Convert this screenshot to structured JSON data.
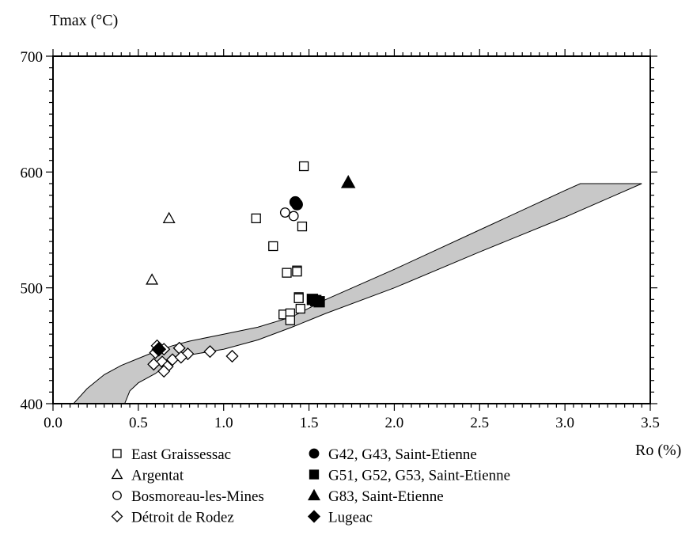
{
  "chart_data": {
    "type": "scatter",
    "title": "",
    "xlabel": "Ro (%)",
    "ylabel": "Tmax (°C)",
    "xlim": [
      0.0,
      3.5
    ],
    "ylim": [
      400,
      700
    ],
    "x_ticks": [
      0.0,
      0.5,
      1.0,
      1.5,
      2.0,
      2.5,
      3.0,
      3.5
    ],
    "x_tick_labels": [
      "0.0",
      "0.5",
      "1.0",
      "1.5",
      "2.0",
      "2.5",
      "3.0",
      "3.5"
    ],
    "y_ticks": [
      400,
      500,
      600,
      700
    ],
    "y_tick_labels": [
      "400",
      "500",
      "600",
      "700"
    ],
    "grid": false,
    "legend_position": "bottom",
    "band": {
      "fill": "#c8c8c8",
      "upper": [
        [
          0.12,
          400
        ],
        [
          0.2,
          413
        ],
        [
          0.3,
          425
        ],
        [
          0.4,
          433
        ],
        [
          0.5,
          439
        ],
        [
          0.6,
          445
        ],
        [
          0.7,
          450
        ],
        [
          0.8,
          454
        ],
        [
          1.0,
          460
        ],
        [
          1.2,
          466
        ],
        [
          1.4,
          475
        ],
        [
          1.6,
          490
        ],
        [
          2.0,
          516
        ],
        [
          2.5,
          550
        ],
        [
          3.0,
          584
        ],
        [
          3.09,
          590
        ],
        [
          3.45,
          590
        ]
      ],
      "lower": [
        [
          3.45,
          590
        ],
        [
          3.0,
          561
        ],
        [
          2.5,
          531
        ],
        [
          2.0,
          500
        ],
        [
          1.6,
          478
        ],
        [
          1.5,
          472
        ],
        [
          1.4,
          466
        ],
        [
          1.2,
          455
        ],
        [
          1.0,
          447
        ],
        [
          0.8,
          442
        ],
        [
          0.7,
          437
        ],
        [
          0.6,
          426
        ],
        [
          0.5,
          418
        ],
        [
          0.45,
          411
        ],
        [
          0.42,
          400
        ]
      ]
    },
    "series": [
      {
        "name": "East Graissessac",
        "marker": "square",
        "filled": false,
        "points": [
          [
            1.47,
            605
          ],
          [
            1.19,
            560
          ],
          [
            1.46,
            553
          ],
          [
            1.29,
            536
          ],
          [
            1.43,
            515
          ],
          [
            1.43,
            514
          ],
          [
            1.37,
            513
          ],
          [
            1.44,
            492
          ],
          [
            1.44,
            491
          ],
          [
            1.45,
            482
          ],
          [
            1.35,
            477
          ],
          [
            1.39,
            478
          ],
          [
            1.39,
            472
          ]
        ]
      },
      {
        "name": "Argentat",
        "marker": "triangle",
        "filled": false,
        "points": [
          [
            0.68,
            560
          ],
          [
            0.58,
            507
          ]
        ]
      },
      {
        "name": "Bosmoreau-les-Mines",
        "marker": "circle",
        "filled": false,
        "points": [
          [
            1.36,
            565
          ],
          [
            1.41,
            562
          ]
        ]
      },
      {
        "name": "Détroit de Rodez",
        "marker": "diamond",
        "filled": false,
        "points": [
          [
            0.61,
            450
          ],
          [
            0.65,
            447
          ],
          [
            0.74,
            448
          ],
          [
            0.6,
            444
          ],
          [
            0.92,
            445
          ],
          [
            1.05,
            441
          ],
          [
            0.79,
            443
          ],
          [
            0.7,
            438
          ],
          [
            0.75,
            440
          ],
          [
            0.64,
            436
          ],
          [
            0.59,
            434
          ],
          [
            0.67,
            432
          ],
          [
            0.65,
            428
          ]
        ]
      },
      {
        "name": "G42, G43, Saint-Etienne",
        "marker": "circle",
        "filled": true,
        "points": [
          [
            1.42,
            574
          ],
          [
            1.43,
            572
          ]
        ]
      },
      {
        "name": "G51, G52, G53, Saint-Etienne",
        "marker": "square",
        "filled": true,
        "points": [
          [
            1.52,
            490
          ],
          [
            1.54,
            489
          ],
          [
            1.56,
            488
          ]
        ]
      },
      {
        "name": "G83,  Saint-Etienne",
        "marker": "triangle",
        "filled": true,
        "points": [
          [
            1.73,
            591
          ]
        ]
      },
      {
        "name": "Lugeac",
        "marker": "diamond",
        "filled": true,
        "points": [
          [
            0.62,
            447
          ]
        ]
      }
    ]
  }
}
